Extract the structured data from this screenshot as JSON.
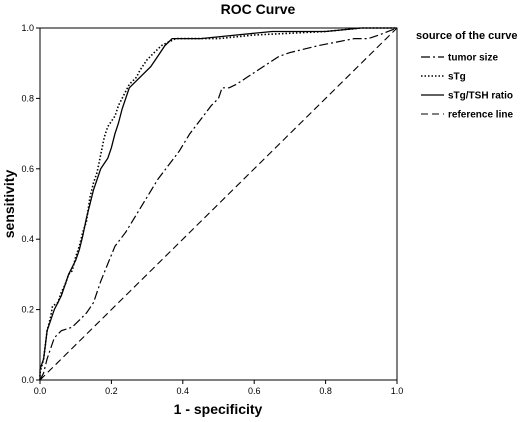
{
  "chart_data": {
    "type": "line",
    "title": "ROC Curve",
    "xlabel": "1 - specificity",
    "ylabel": "sensitivity",
    "xlim": [
      0,
      1
    ],
    "ylim": [
      0,
      1
    ],
    "xticks": [
      "0.0",
      "0.2",
      "0.4",
      "0.6",
      "0.8",
      "1.0"
    ],
    "yticks": [
      "0.0",
      "0.2",
      "0.4",
      "0.6",
      "0.8",
      "1.0"
    ],
    "xtick_values": [
      0,
      0.2,
      0.4,
      0.6,
      0.8,
      1.0
    ],
    "ytick_values": [
      0,
      0.2,
      0.4,
      0.6,
      0.8,
      1.0
    ],
    "grid": false,
    "legend": {
      "title": "source of the curve",
      "placement": "right"
    },
    "series": [
      {
        "name": "tumor size",
        "style": "dashdot",
        "color": "#000000",
        "points": [
          [
            0,
            0
          ],
          [
            0.01,
            0.02
          ],
          [
            0.02,
            0.06
          ],
          [
            0.03,
            0.09
          ],
          [
            0.04,
            0.12
          ],
          [
            0.06,
            0.14
          ],
          [
            0.09,
            0.15
          ],
          [
            0.11,
            0.17
          ],
          [
            0.13,
            0.19
          ],
          [
            0.15,
            0.22
          ],
          [
            0.17,
            0.28
          ],
          [
            0.19,
            0.33
          ],
          [
            0.21,
            0.38
          ],
          [
            0.24,
            0.42
          ],
          [
            0.27,
            0.47
          ],
          [
            0.3,
            0.52
          ],
          [
            0.33,
            0.57
          ],
          [
            0.36,
            0.61
          ],
          [
            0.39,
            0.65
          ],
          [
            0.42,
            0.7
          ],
          [
            0.45,
            0.74
          ],
          [
            0.48,
            0.78
          ],
          [
            0.5,
            0.8
          ],
          [
            0.51,
            0.83
          ],
          [
            0.53,
            0.83
          ],
          [
            0.55,
            0.84
          ],
          [
            0.58,
            0.86
          ],
          [
            0.61,
            0.88
          ],
          [
            0.64,
            0.9
          ],
          [
            0.67,
            0.92
          ],
          [
            0.7,
            0.93
          ],
          [
            0.74,
            0.94
          ],
          [
            0.78,
            0.95
          ],
          [
            0.83,
            0.96
          ],
          [
            0.88,
            0.97
          ],
          [
            0.92,
            0.97
          ],
          [
            0.95,
            0.98
          ],
          [
            1,
            1
          ]
        ]
      },
      {
        "name": "sTg",
        "style": "dotted",
        "color": "#000000",
        "points": [
          [
            0,
            0
          ],
          [
            0,
            0.02
          ],
          [
            0.01,
            0.06
          ],
          [
            0.015,
            0.1
          ],
          [
            0.02,
            0.14
          ],
          [
            0.03,
            0.18
          ],
          [
            0.035,
            0.21
          ],
          [
            0.05,
            0.22
          ],
          [
            0.06,
            0.25
          ],
          [
            0.07,
            0.27
          ],
          [
            0.08,
            0.3
          ],
          [
            0.09,
            0.31
          ],
          [
            0.1,
            0.35
          ],
          [
            0.11,
            0.38
          ],
          [
            0.12,
            0.42
          ],
          [
            0.13,
            0.45
          ],
          [
            0.14,
            0.52
          ],
          [
            0.15,
            0.56
          ],
          [
            0.16,
            0.59
          ],
          [
            0.17,
            0.64
          ],
          [
            0.18,
            0.69
          ],
          [
            0.19,
            0.72
          ],
          [
            0.21,
            0.75
          ],
          [
            0.22,
            0.78
          ],
          [
            0.23,
            0.8
          ],
          [
            0.24,
            0.82
          ],
          [
            0.25,
            0.84
          ],
          [
            0.27,
            0.86
          ],
          [
            0.28,
            0.88
          ],
          [
            0.3,
            0.91
          ],
          [
            0.32,
            0.93
          ],
          [
            0.34,
            0.95
          ],
          [
            0.36,
            0.96
          ],
          [
            0.38,
            0.97
          ],
          [
            0.5,
            0.97
          ],
          [
            0.6,
            0.98
          ],
          [
            0.8,
            0.99
          ],
          [
            0.9,
            1
          ],
          [
            1,
            1
          ]
        ]
      },
      {
        "name": "sTg/TSH ratio",
        "style": "solid",
        "color": "#000000",
        "points": [
          [
            0,
            0
          ],
          [
            0,
            0.03
          ],
          [
            0.01,
            0.06
          ],
          [
            0.015,
            0.1
          ],
          [
            0.02,
            0.14
          ],
          [
            0.03,
            0.17
          ],
          [
            0.04,
            0.2
          ],
          [
            0.05,
            0.22
          ],
          [
            0.06,
            0.24
          ],
          [
            0.07,
            0.27
          ],
          [
            0.08,
            0.3
          ],
          [
            0.09,
            0.32
          ],
          [
            0.1,
            0.34
          ],
          [
            0.11,
            0.37
          ],
          [
            0.12,
            0.41
          ],
          [
            0.13,
            0.46
          ],
          [
            0.14,
            0.5
          ],
          [
            0.15,
            0.54
          ],
          [
            0.16,
            0.57
          ],
          [
            0.17,
            0.6
          ],
          [
            0.19,
            0.63
          ],
          [
            0.2,
            0.66
          ],
          [
            0.21,
            0.7
          ],
          [
            0.22,
            0.73
          ],
          [
            0.23,
            0.77
          ],
          [
            0.24,
            0.8
          ],
          [
            0.25,
            0.83
          ],
          [
            0.27,
            0.85
          ],
          [
            0.29,
            0.87
          ],
          [
            0.31,
            0.89
          ],
          [
            0.33,
            0.92
          ],
          [
            0.35,
            0.95
          ],
          [
            0.37,
            0.97
          ],
          [
            0.45,
            0.97
          ],
          [
            0.55,
            0.98
          ],
          [
            0.65,
            0.99
          ],
          [
            0.8,
            0.99
          ],
          [
            0.9,
            1
          ],
          [
            1,
            1
          ]
        ]
      },
      {
        "name": "reference line",
        "style": "dashed",
        "color": "#000000",
        "points": [
          [
            0,
            0
          ],
          [
            1,
            1
          ]
        ]
      }
    ]
  }
}
